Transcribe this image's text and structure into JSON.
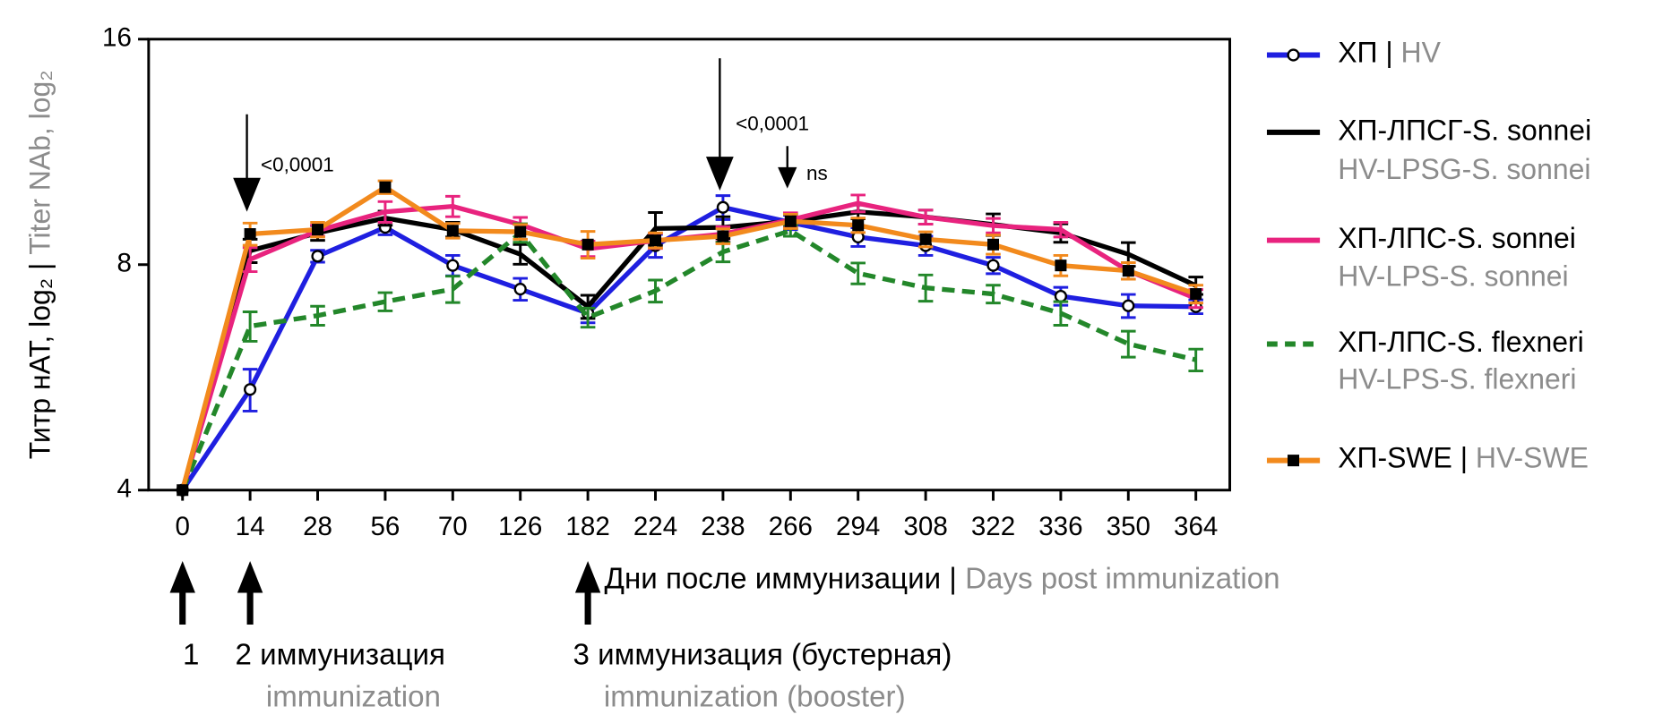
{
  "chart_data": {
    "type": "line",
    "log_scale_y": 2,
    "ylim": [
      4,
      16
    ],
    "yticks": [
      4,
      8,
      16
    ],
    "y_label": "Титр нАТ, log₂",
    "y_label_en": "Titer NAb, log₂",
    "x_label": "Дни после иммунизации",
    "x_label_en": "Days post immunization",
    "separator": "|",
    "categories": [
      "0",
      "14",
      "28",
      "56",
      "70",
      "126",
      "182",
      "224",
      "238",
      "266",
      "294",
      "308",
      "322",
      "336",
      "350",
      "364"
    ],
    "series": [
      {
        "name": "ХП",
        "name_en": "HV",
        "color": "#1f1fe0",
        "marker": "circle",
        "dash": false,
        "values": [
          4,
          5.45,
          8.21,
          8.97,
          7.98,
          7.42,
          6.89,
          8.48,
          9.54,
          9.11,
          8.71,
          8.48,
          7.98,
          7.26,
          7.05,
          7.03
        ],
        "errors": [
          0,
          0.35,
          0.15,
          0.2,
          0.25,
          0.25,
          0.2,
          0.3,
          0.35,
          0.2,
          0.25,
          0.25,
          0.2,
          0.2,
          0.25,
          0.15
        ]
      },
      {
        "name": "ХП-ЛПСГ-S. sonnei",
        "name_en": "HV-LPSG-S. sonnei",
        "color": "#000000",
        "marker": "none",
        "dash": false,
        "values": [
          4,
          8.35,
          8.82,
          9.23,
          8.91,
          8.26,
          7.03,
          8.94,
          8.97,
          9.14,
          9.41,
          9.26,
          9.05,
          8.82,
          8.26,
          7.5
        ],
        "errors": [
          0,
          0.3,
          0.2,
          0.2,
          0.2,
          0.25,
          0.25,
          0.45,
          0.3,
          0.2,
          0.2,
          0.2,
          0.3,
          0.25,
          0.3,
          0.2
        ]
      },
      {
        "name": "ХП-ЛПС-S. sonnei",
        "name_en": "HV-LPS-S. sonnei",
        "color": "#e8237e",
        "marker": "none",
        "dash": false,
        "values": [
          4,
          8.13,
          8.88,
          9.41,
          9.57,
          9.05,
          8.4,
          8.61,
          8.79,
          9.18,
          9.66,
          9.26,
          9.02,
          8.91,
          7.85,
          7.21
        ],
        "errors": [
          0,
          0.3,
          0.15,
          0.3,
          0.3,
          0.2,
          0.2,
          0.2,
          0.2,
          0.2,
          0.25,
          0.2,
          0.2,
          0.2,
          0.2,
          0.2
        ]
      },
      {
        "name": "ХП-ЛПС-S. flexneri",
        "name_en": "HV-LPS-S. flexneri",
        "color": "#23872a",
        "marker": "none",
        "dash": true,
        "values": [
          4,
          6.62,
          6.84,
          7.14,
          7.42,
          8.82,
          6.8,
          7.38,
          8.32,
          8.88,
          7.79,
          7.45,
          7.31,
          6.89,
          6.27,
          5.97
        ],
        "errors": [
          0,
          0.3,
          0.2,
          0.2,
          0.3,
          0.25,
          0.2,
          0.25,
          0.25,
          0.15,
          0.25,
          0.3,
          0.2,
          0.25,
          0.25,
          0.2
        ]
      },
      {
        "name": "ХП-SWE",
        "name_en": "HV-SWE",
        "color": "#f28a1d",
        "marker": "square",
        "dash": false,
        "values": [
          4,
          8.79,
          8.91,
          10.15,
          8.88,
          8.85,
          8.51,
          8.62,
          8.73,
          9.14,
          9.03,
          8.65,
          8.51,
          7.98,
          7.85,
          7.31
        ],
        "errors": [
          0,
          0.3,
          0.2,
          0.2,
          0.2,
          0.2,
          0.35,
          0.2,
          0.2,
          0.2,
          0.2,
          0.2,
          0.25,
          0.25,
          0.2,
          0.2
        ]
      }
    ],
    "annotations": [
      {
        "category": "14",
        "text": "<0,0001"
      },
      {
        "category": "238",
        "text": "<0,0001"
      },
      {
        "category": "266",
        "text": "ns"
      }
    ],
    "immunizations": [
      {
        "category": "0",
        "label": "1"
      },
      {
        "category": "14",
        "label": "2",
        "text": "иммунизация",
        "text_en": "immunization"
      },
      {
        "category": "182",
        "label": "3",
        "text": "иммунизация (бустерная)",
        "text_en": "immunization (booster)"
      }
    ]
  }
}
